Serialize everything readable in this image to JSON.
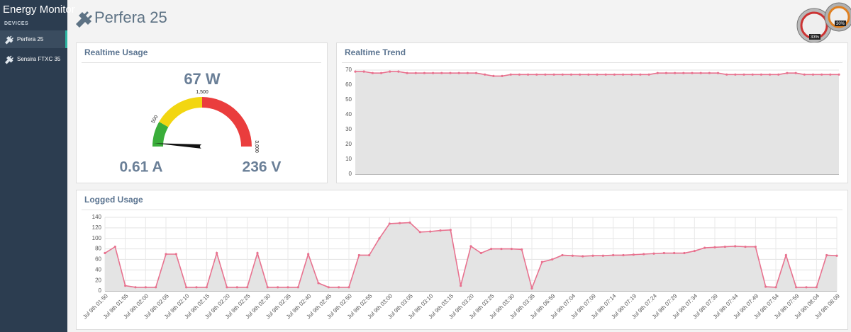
{
  "sidebar": {
    "title": "Energy Monitor",
    "section": "DEVICES",
    "items": [
      "Perfera 25",
      "Sensira FTXC 35"
    ]
  },
  "header": {
    "title": "Perfera 25"
  },
  "widget": {
    "labels": [
      "33%",
      "30%"
    ]
  },
  "chart_data": [
    {
      "type": "gauge",
      "title": "Realtime Usage",
      "value": 67,
      "value_label": "67 W",
      "current_label": "0.61 A",
      "voltage_label": "236 V",
      "range": [
        0,
        3000
      ],
      "ticks": [
        500,
        {
          "value": 1500,
          "label": "1,500"
        },
        {
          "value": 3000,
          "label": "3,000"
        }
      ],
      "bands": [
        {
          "to": 500,
          "color": "#3aae3a"
        },
        {
          "to": 1500,
          "color": "#f2d611"
        },
        {
          "to": 3000,
          "color": "#ea3d3d"
        }
      ]
    },
    {
      "type": "line",
      "title": "Realtime Trend",
      "series": [
        {
          "color": "#e8728f",
          "values": [
            69,
            69,
            68,
            68,
            69,
            69,
            68,
            68,
            68,
            68,
            68,
            68,
            68,
            68,
            68,
            67,
            66,
            66,
            67,
            67,
            67,
            67,
            67,
            67,
            67,
            67,
            67,
            67,
            67,
            67,
            67,
            67,
            67,
            67,
            67,
            68,
            68,
            68,
            68,
            68,
            68,
            68,
            68,
            67,
            67,
            67,
            67,
            67,
            67,
            67,
            68,
            68,
            67,
            67,
            67,
            67,
            67
          ]
        }
      ],
      "ylim": [
        0,
        70
      ],
      "yticks": [
        0,
        10,
        20,
        30,
        40,
        50,
        60,
        70
      ],
      "grid": "y",
      "area_color": "#e4e4e4"
    },
    {
      "type": "line",
      "title": "Logged Usage",
      "categories": [
        "Jul 9th 01:50",
        null,
        "Jul 9th 01:55",
        null,
        "Jul 9th 02:00",
        null,
        "Jul 9th 02:05",
        null,
        "Jul 9th 02:10",
        null,
        "Jul 9th 02:15",
        null,
        "Jul 9th 02:20",
        null,
        "Jul 9th 02:25",
        null,
        "Jul 9th 02:30",
        null,
        "Jul 9th 02:35",
        null,
        "Jul 9th 02:40",
        null,
        "Jul 9th 02:45",
        null,
        "Jul 9th 02:50",
        null,
        "Jul 9th 02:55",
        null,
        "Jul 9th 03:00",
        null,
        "Jul 9th 03:05",
        null,
        "Jul 9th 03:10",
        null,
        "Jul 9th 03:15",
        null,
        "Jul 9th 03:20",
        null,
        "Jul 9th 03:25",
        null,
        "Jul 9th 03:30",
        null,
        "Jul 9th 03:35",
        null,
        "Jul 9th 06:59",
        null,
        "Jul 9th 07:04",
        null,
        "Jul 9th 07:09",
        null,
        "Jul 9th 07:14",
        null,
        "Jul 9th 07:19",
        null,
        "Jul 9th 07:24",
        null,
        "Jul 9th 07:29",
        null,
        "Jul 9th 07:34",
        null,
        "Jul 9th 07:39",
        null,
        "Jul 9th 07:44",
        null,
        "Jul 9th 07:49",
        null,
        "Jul 9th 07:54",
        null,
        "Jul 9th 07:59",
        null,
        "Jul 9th 08:04",
        null,
        "Jul 9th 08:09"
      ],
      "series": [
        {
          "color": "#e8728f",
          "values": [
            72,
            84,
            10,
            7,
            7,
            7,
            70,
            70,
            7,
            7,
            7,
            72,
            7,
            7,
            7,
            72,
            7,
            7,
            7,
            7,
            70,
            15,
            7,
            7,
            7,
            68,
            68,
            100,
            128,
            129,
            130,
            112,
            113,
            115,
            116,
            10,
            85,
            72,
            80,
            80,
            80,
            79,
            5,
            55,
            60,
            68,
            67,
            66,
            67,
            67,
            68,
            68,
            69,
            70,
            71,
            72,
            72,
            72,
            76,
            82,
            83,
            84,
            85,
            84,
            84,
            8,
            7,
            68,
            7,
            7,
            7,
            68,
            67
          ]
        }
      ],
      "ylim": [
        0,
        140
      ],
      "yticks": [
        0,
        20,
        40,
        60,
        80,
        100,
        120,
        140
      ],
      "grid": "both",
      "area_color": "#e4e4e4"
    }
  ]
}
